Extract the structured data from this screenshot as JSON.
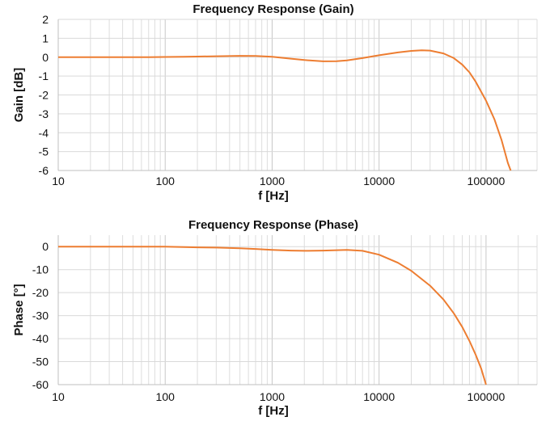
{
  "chart_data": [
    {
      "type": "line",
      "title": "Frequency Response (Gain)",
      "xlabel": "f [Hz]",
      "ylabel": "Gain [dB]",
      "xscale": "log",
      "xlim": [
        10,
        300000
      ],
      "ylim": [
        -6,
        2
      ],
      "x_ticks": [
        10,
        100,
        1000,
        10000,
        100000
      ],
      "x_tick_labels": [
        "10",
        "100",
        "1000",
        "10000",
        "100000"
      ],
      "y_ticks": [
        2,
        1,
        0,
        -1,
        -2,
        -3,
        -4,
        -5,
        -6
      ],
      "y_tick_labels": [
        "2",
        "1",
        "0",
        "-1",
        "-2",
        "-3",
        "-4",
        "-5",
        "-6"
      ],
      "grid": true,
      "line_color": "#ed7d31",
      "series": [
        {
          "name": "Gain",
          "x": [
            10,
            30,
            70,
            100,
            150,
            200,
            300,
            500,
            700,
            1000,
            1500,
            2000,
            3000,
            4000,
            5000,
            7000,
            10000,
            15000,
            20000,
            25000,
            30000,
            40000,
            50000,
            60000,
            70000,
            80000,
            100000,
            120000,
            140000,
            160000,
            170000
          ],
          "values": [
            0,
            0,
            0,
            0.01,
            0.02,
            0.03,
            0.05,
            0.07,
            0.06,
            0.02,
            -0.08,
            -0.15,
            -0.22,
            -0.21,
            -0.17,
            -0.05,
            0.1,
            0.25,
            0.33,
            0.36,
            0.35,
            0.2,
            -0.05,
            -0.4,
            -0.8,
            -1.3,
            -2.3,
            -3.3,
            -4.4,
            -5.6,
            -6
          ]
        }
      ]
    },
    {
      "type": "line",
      "title": "Frequency Response (Phase)",
      "xlabel": "f [Hz]",
      "ylabel": "Phase [°]",
      "xscale": "log",
      "xlim": [
        10,
        300000
      ],
      "ylim": [
        -60,
        5
      ],
      "x_ticks": [
        10,
        100,
        1000,
        10000,
        100000
      ],
      "x_tick_labels": [
        "10",
        "100",
        "1000",
        "10000",
        "100000"
      ],
      "y_ticks": [
        0,
        -10,
        -20,
        -30,
        -40,
        -50,
        -60
      ],
      "y_tick_labels": [
        "0",
        "-10",
        "-20",
        "-30",
        "-40",
        "-50",
        "-60"
      ],
      "grid": true,
      "line_color": "#ed7d31",
      "series": [
        {
          "name": "Phase",
          "x": [
            10,
            50,
            100,
            150,
            200,
            300,
            500,
            700,
            1000,
            1500,
            2000,
            3000,
            5000,
            7000,
            10000,
            15000,
            20000,
            30000,
            40000,
            50000,
            60000,
            70000,
            80000,
            90000,
            100000
          ],
          "values": [
            0,
            0,
            0,
            -0.2,
            -0.3,
            -0.4,
            -0.7,
            -1.0,
            -1.4,
            -1.7,
            -1.8,
            -1.7,
            -1.4,
            -1.8,
            -3.5,
            -7,
            -10.5,
            -17,
            -23,
            -29,
            -35,
            -41,
            -47,
            -53,
            -60
          ]
        }
      ]
    }
  ]
}
